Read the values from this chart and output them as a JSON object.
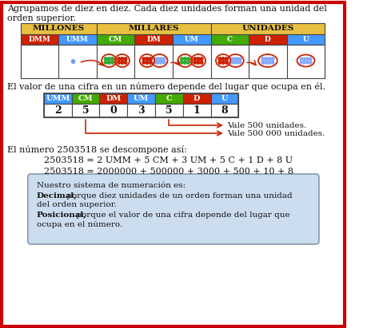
{
  "bg_color": "#ffffff",
  "border_color": "#cc0000",
  "title_text1": "Agrupamos de diez en diez. Cada diez unidades forman una unidad del",
  "title_text2": "orden superior.",
  "t1_sub_labels": [
    "DMM",
    "UMM",
    "CM",
    "DM",
    "UM",
    "C",
    "D",
    "U"
  ],
  "t1_sub_colors": [
    "#cc2200",
    "#4499ff",
    "#44aa00",
    "#cc2200",
    "#4499ff",
    "#44aa00",
    "#cc2200",
    "#4499ff"
  ],
  "text2": "El valor de una cifra en un número depende del lugar que ocupa en él.",
  "t2_headers": [
    "UMM",
    "CM",
    "DM",
    "UM",
    "C",
    "D",
    "U"
  ],
  "t2_colors": [
    "#4499ff",
    "#44aa00",
    "#cc2200",
    "#4499ff",
    "#44aa00",
    "#cc2200",
    "#4499ff"
  ],
  "t2_values": [
    "2",
    "5",
    "0",
    "3",
    "5",
    "1",
    "8"
  ],
  "arrow1_text": "Vale 500 unidades.",
  "arrow2_text": "Vale 500 000 unidades.",
  "text3": "El número 2503518 se descompone así:",
  "eq1": "2503518 = 2 UMM + 5 CM + 3 UM + 5 C + 1 D + 8 U",
  "eq2": "2503518 = 2000000 + 500000 + 3000 + 500 + 10 + 8",
  "box_bg": "#ccddf0",
  "box_border": "#8899aa"
}
